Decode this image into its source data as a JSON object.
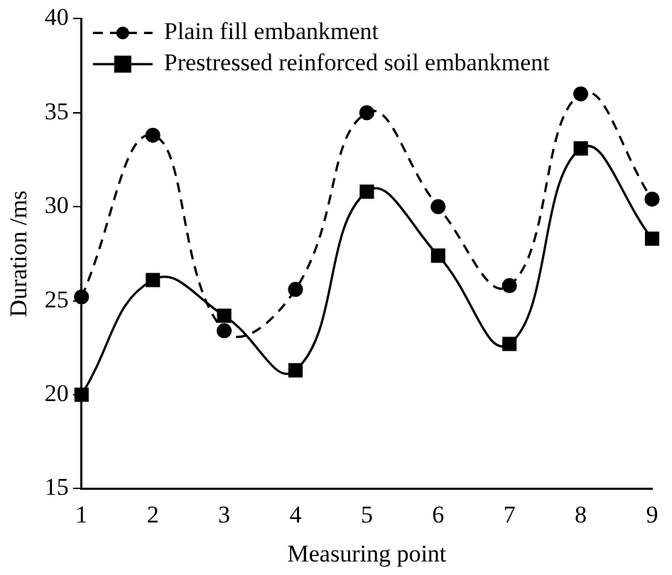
{
  "chart_data": {
    "type": "line",
    "xlabel": "Measuring point",
    "ylabel": "Duration /ms",
    "x": [
      1,
      2,
      3,
      4,
      5,
      6,
      7,
      8,
      9
    ],
    "xlim": [
      1,
      9
    ],
    "xticks": [
      1,
      2,
      3,
      4,
      5,
      6,
      7,
      8,
      9
    ],
    "ylim": [
      15,
      40
    ],
    "yticks": [
      15,
      20,
      25,
      30,
      35,
      40
    ],
    "series": [
      {
        "name": "Plain fill embankment",
        "color": "#000000",
        "marker": "circle",
        "line_style": "dashed",
        "values": [
          25.2,
          33.8,
          23.4,
          25.6,
          35.0,
          30.0,
          25.8,
          36.0,
          30.4
        ]
      },
      {
        "name": "Prestressed reinforced soil embankment",
        "color": "#000000",
        "marker": "square",
        "line_style": "solid",
        "values": [
          20.0,
          26.1,
          24.2,
          21.3,
          30.8,
          27.4,
          22.7,
          33.1,
          28.3
        ]
      }
    ],
    "grid": false,
    "legend": "top left"
  }
}
